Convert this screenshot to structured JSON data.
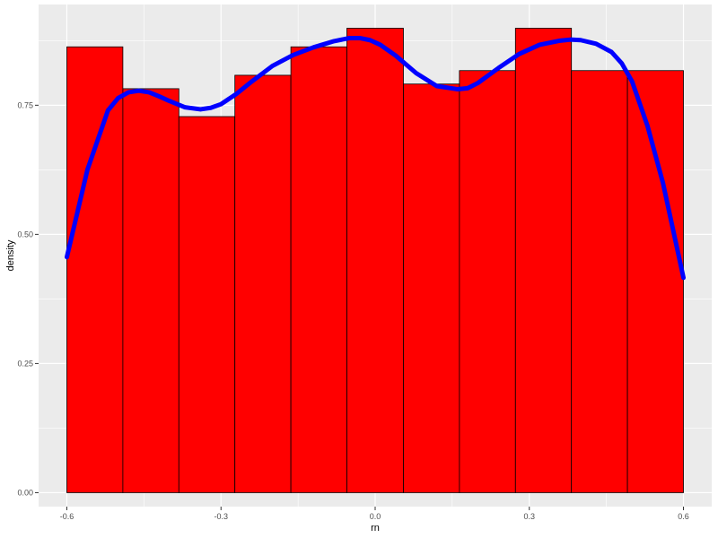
{
  "chart_data": {
    "type": "bar",
    "xlabel": "rn",
    "ylabel": "density",
    "xlim": [
      -0.655,
      0.655
    ],
    "ylim": [
      -0.027,
      0.945
    ],
    "x_ticks": [
      -0.6,
      -0.3,
      0.0,
      0.3,
      0.6
    ],
    "x_tick_labels": [
      "-0.6",
      "-0.3",
      "0.0",
      "0.3",
      "0.6"
    ],
    "y_ticks": [
      0.0,
      0.25,
      0.5,
      0.75
    ],
    "y_tick_labels": [
      "0.00",
      "0.25",
      "0.50",
      "0.75"
    ],
    "grid": true,
    "bins": [
      {
        "x0": -0.6,
        "x1": -0.491,
        "density": 0.863
      },
      {
        "x0": -0.491,
        "x1": -0.382,
        "density": 0.782
      },
      {
        "x0": -0.382,
        "x1": -0.273,
        "density": 0.728
      },
      {
        "x0": -0.273,
        "x1": -0.164,
        "density": 0.808
      },
      {
        "x0": -0.164,
        "x1": -0.055,
        "density": 0.863
      },
      {
        "x0": -0.055,
        "x1": 0.055,
        "density": 0.899
      },
      {
        "x0": 0.055,
        "x1": 0.164,
        "density": 0.791
      },
      {
        "x0": 0.164,
        "x1": 0.273,
        "density": 0.817
      },
      {
        "x0": 0.273,
        "x1": 0.382,
        "density": 0.899
      },
      {
        "x0": 0.382,
        "x1": 0.491,
        "density": 0.817
      },
      {
        "x0": 0.491,
        "x1": 0.6,
        "density": 0.817
      }
    ],
    "density_curve": {
      "x": [
        -0.6,
        -0.56,
        -0.52,
        -0.5,
        -0.48,
        -0.46,
        -0.44,
        -0.42,
        -0.4,
        -0.37,
        -0.34,
        -0.32,
        -0.3,
        -0.27,
        -0.24,
        -0.2,
        -0.16,
        -0.12,
        -0.08,
        -0.05,
        -0.03,
        -0.01,
        0.01,
        0.04,
        0.08,
        0.12,
        0.16,
        0.18,
        0.2,
        0.24,
        0.28,
        0.32,
        0.36,
        0.38,
        0.4,
        0.43,
        0.46,
        0.48,
        0.5,
        0.53,
        0.56,
        0.6
      ],
      "y": [
        0.456,
        0.625,
        0.74,
        0.764,
        0.775,
        0.778,
        0.775,
        0.767,
        0.758,
        0.746,
        0.742,
        0.745,
        0.752,
        0.772,
        0.796,
        0.826,
        0.847,
        0.862,
        0.874,
        0.88,
        0.88,
        0.876,
        0.867,
        0.846,
        0.812,
        0.787,
        0.781,
        0.783,
        0.793,
        0.822,
        0.849,
        0.867,
        0.875,
        0.877,
        0.876,
        0.869,
        0.853,
        0.831,
        0.796,
        0.71,
        0.6,
        0.416
      ]
    },
    "colors": {
      "panel_bg": "#EBEBEB",
      "grid_major": "#FFFFFF",
      "bar_fill": "#FF0000",
      "bar_stroke": "#000000",
      "curve": "#0000FF",
      "tick": "#333333"
    }
  }
}
